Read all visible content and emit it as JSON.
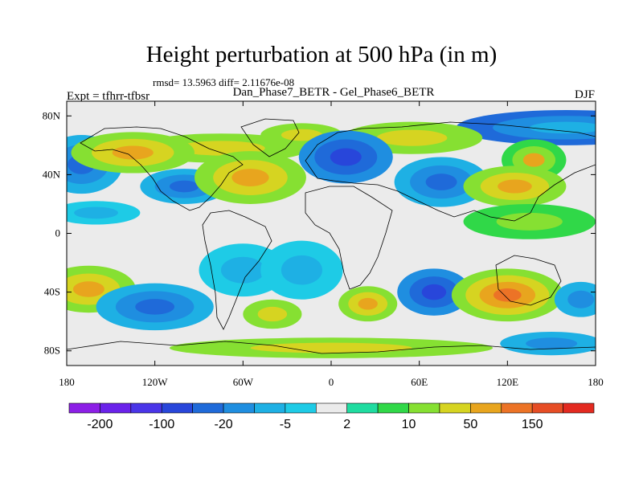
{
  "header": {
    "title": "Height perturbation at 500 hPa (in m)",
    "stats": "rmsd= 13.5963 diff= 2.11676e-08",
    "left_label": "Expt = tfhrr-tfbsr",
    "center_label": "Dan_Phase7_BETR - Gel_Phase6_BETR",
    "right_label": "DJF"
  },
  "chart_data": {
    "type": "heatmap",
    "title": "Height perturbation at 500 hPa (in m)",
    "projection": "cylindrical equidistant",
    "units": "m",
    "xlim": [
      -180,
      180
    ],
    "ylim": [
      -90,
      90
    ],
    "x_ticks": [
      {
        "value": -180,
        "label": "180"
      },
      {
        "value": -120,
        "label": "120W"
      },
      {
        "value": -60,
        "label": "60W"
      },
      {
        "value": 0,
        "label": "0"
      },
      {
        "value": 60,
        "label": "60E"
      },
      {
        "value": 120,
        "label": "120E"
      },
      {
        "value": 180,
        "label": "180"
      }
    ],
    "y_ticks": [
      {
        "value": 80,
        "label": "80N"
      },
      {
        "value": 40,
        "label": "40N"
      },
      {
        "value": 0,
        "label": "0"
      },
      {
        "value": -40,
        "label": "40S"
      },
      {
        "value": -80,
        "label": "80S"
      }
    ],
    "colorbar": {
      "colors": [
        "#8c1fe6",
        "#6a22ea",
        "#4a35e8",
        "#2846da",
        "#1f6ad9",
        "#1f8ee0",
        "#1eb0e4",
        "#1ecbe6",
        "#ebebeb",
        "#1fdca0",
        "#30d848",
        "#86e032",
        "#d6d421",
        "#e8a51e",
        "#ec7326",
        "#e64d25",
        "#e32a20"
      ],
      "labels": [
        {
          "index": 1,
          "label": "-200"
        },
        {
          "index": 3,
          "label": "-100"
        },
        {
          "index": 5,
          "label": "-20"
        },
        {
          "index": 7,
          "label": "-5"
        },
        {
          "index": 9,
          "label": "2"
        },
        {
          "index": 11,
          "label": "10"
        },
        {
          "index": 13,
          "label": "50"
        },
        {
          "index": 15,
          "label": "150"
        }
      ]
    },
    "background_level": 8,
    "anomalies": [
      {
        "lon": 160,
        "lat": 72,
        "rx": 75,
        "ry": 12,
        "levels": [
          4,
          5,
          6
        ]
      },
      {
        "lon": -75,
        "lat": 58,
        "rx": 60,
        "ry": 10,
        "levels": [
          11,
          12
        ]
      },
      {
        "lon": -20,
        "lat": 67,
        "rx": 28,
        "ry": 8,
        "levels": [
          11,
          12
        ]
      },
      {
        "lon": 55,
        "lat": 65,
        "rx": 48,
        "ry": 11,
        "levels": [
          11,
          12
        ]
      },
      {
        "lon": 138,
        "lat": 50,
        "rx": 22,
        "ry": 14,
        "levels": [
          10,
          11,
          13
        ]
      },
      {
        "lon": -170,
        "lat": 47,
        "rx": 28,
        "ry": 20,
        "levels": [
          6,
          5,
          4
        ]
      },
      {
        "lon": -135,
        "lat": 55,
        "rx": 42,
        "ry": 14,
        "levels": [
          11,
          12,
          13
        ]
      },
      {
        "lon": -100,
        "lat": 32,
        "rx": 30,
        "ry": 12,
        "levels": [
          6,
          5,
          4
        ]
      },
      {
        "lon": -55,
        "lat": 38,
        "rx": 38,
        "ry": 18,
        "levels": [
          11,
          12,
          13
        ]
      },
      {
        "lon": 10,
        "lat": 52,
        "rx": 32,
        "ry": 18,
        "levels": [
          5,
          4,
          3
        ]
      },
      {
        "lon": 75,
        "lat": 35,
        "rx": 32,
        "ry": 17,
        "levels": [
          6,
          5,
          4
        ]
      },
      {
        "lon": 125,
        "lat": 32,
        "rx": 35,
        "ry": 14,
        "levels": [
          11,
          12,
          13
        ]
      },
      {
        "lon": 135,
        "lat": 8,
        "rx": 45,
        "ry": 12,
        "levels": [
          10,
          11
        ]
      },
      {
        "lon": -160,
        "lat": 14,
        "rx": 30,
        "ry": 8,
        "levels": [
          7,
          6
        ]
      },
      {
        "lon": -165,
        "lat": -38,
        "rx": 32,
        "ry": 16,
        "levels": [
          11,
          12,
          13
        ]
      },
      {
        "lon": -120,
        "lat": -50,
        "rx": 40,
        "ry": 16,
        "levels": [
          6,
          5,
          4
        ]
      },
      {
        "lon": -60,
        "lat": -25,
        "rx": 30,
        "ry": 18,
        "levels": [
          7,
          6
        ]
      },
      {
        "lon": -20,
        "lat": -25,
        "rx": 28,
        "ry": 20,
        "levels": [
          7,
          6
        ]
      },
      {
        "lon": -40,
        "lat": -55,
        "rx": 20,
        "ry": 10,
        "levels": [
          11,
          12
        ]
      },
      {
        "lon": 25,
        "lat": -48,
        "rx": 20,
        "ry": 12,
        "levels": [
          11,
          12,
          13
        ]
      },
      {
        "lon": 70,
        "lat": -40,
        "rx": 25,
        "ry": 16,
        "levels": [
          5,
          4,
          3
        ]
      },
      {
        "lon": 120,
        "lat": -42,
        "rx": 38,
        "ry": 18,
        "levels": [
          11,
          12,
          13,
          14
        ]
      },
      {
        "lon": 170,
        "lat": -45,
        "rx": 18,
        "ry": 12,
        "levels": [
          6,
          5
        ]
      },
      {
        "lon": 0,
        "lat": -78,
        "rx": 110,
        "ry": 7,
        "levels": [
          11,
          12
        ]
      },
      {
        "lon": 150,
        "lat": -75,
        "rx": 35,
        "ry": 8,
        "levels": [
          6,
          5
        ]
      }
    ]
  }
}
